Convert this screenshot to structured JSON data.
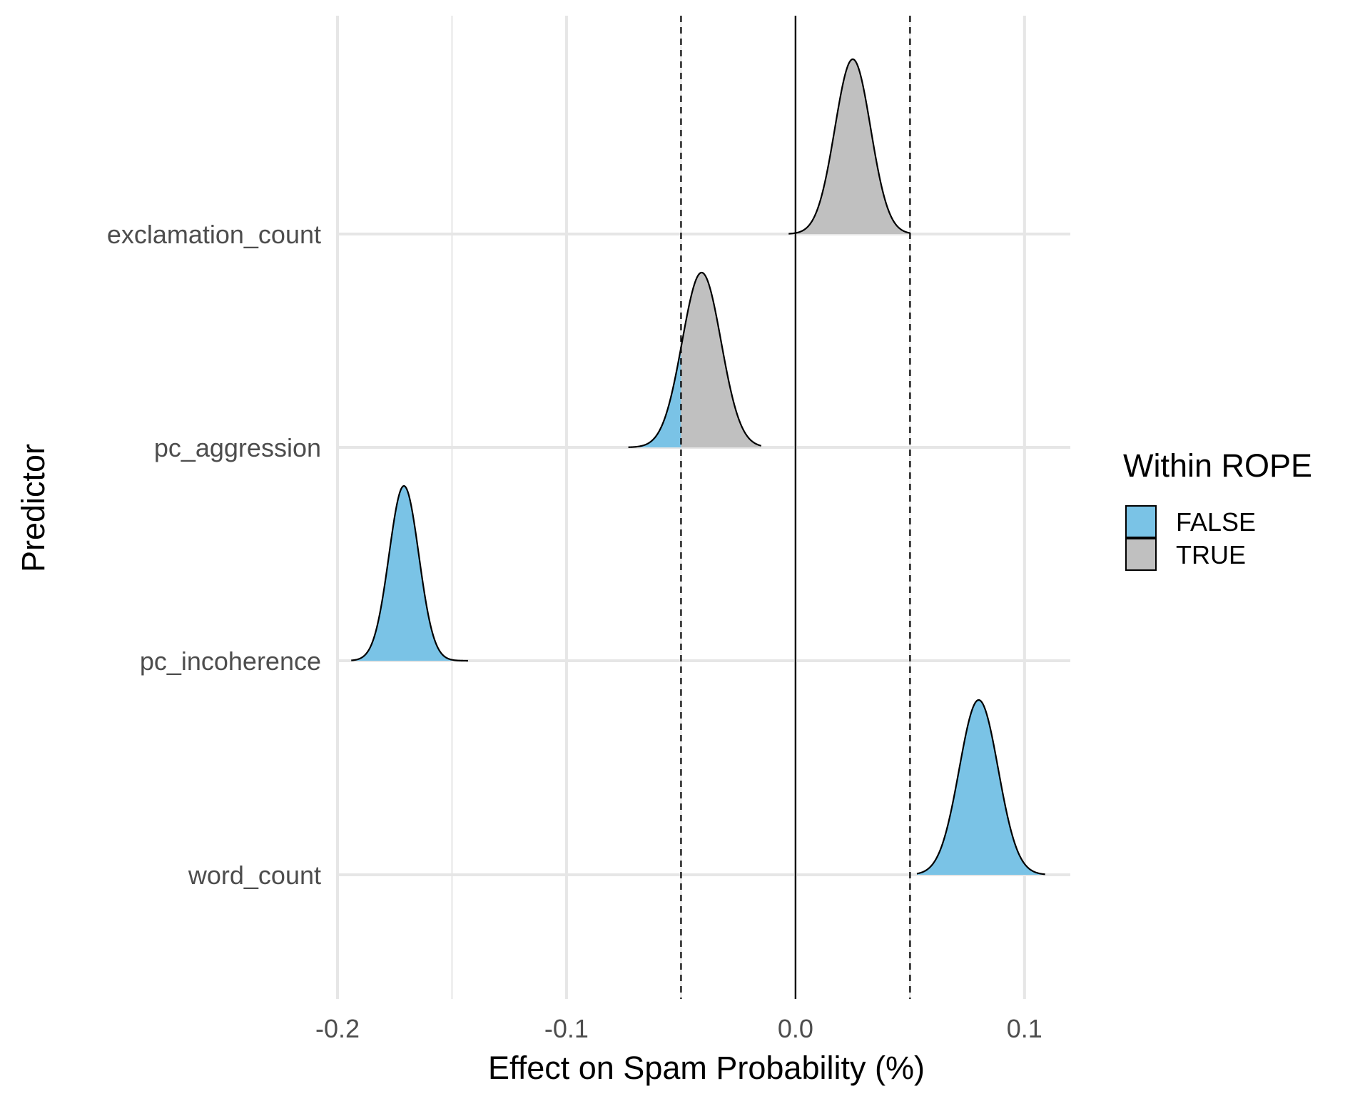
{
  "chart_data": {
    "type": "ridgeline-density",
    "title": "",
    "xlabel": "Effect on Spam Probability (%)",
    "ylabel": "Predictor",
    "xlim": [
      -0.2,
      0.12
    ],
    "x_ticks": [
      -0.2,
      -0.1,
      0.0,
      0.1
    ],
    "x_tick_labels": [
      "-0.2",
      "-0.1",
      "0.0",
      "0.1"
    ],
    "categories": [
      "exclamation_count",
      "pc_aggression",
      "pc_incoherence",
      "word_count"
    ],
    "rope": [
      -0.05,
      0.05
    ],
    "zero_line": 0.0,
    "grid": true,
    "legend": {
      "title": "Within ROPE",
      "placement": "right",
      "entries": [
        {
          "label": "FALSE",
          "color": "#7AC3E6"
        },
        {
          "label": "TRUE",
          "color": "#C0C0C0"
        }
      ]
    },
    "series": [
      {
        "predictor": "exclamation_count",
        "mean": 0.025,
        "sd": 0.0078,
        "min": -0.003,
        "max": 0.05
      },
      {
        "predictor": "pc_aggression",
        "mean": -0.041,
        "sd": 0.0085,
        "min": -0.073,
        "max": -0.015
      },
      {
        "predictor": "pc_incoherence",
        "mean": -0.171,
        "sd": 0.0065,
        "min": -0.194,
        "max": -0.143
      },
      {
        "predictor": "word_count",
        "mean": 0.08,
        "sd": 0.0085,
        "min": 0.053,
        "max": 0.109
      }
    ],
    "colors": {
      "outside_rope": "#7AC3E6",
      "inside_rope": "#C0C0C0",
      "outline": "#000000",
      "grid": "#E6E6E6",
      "tick_text": "#4D4D4D"
    }
  }
}
